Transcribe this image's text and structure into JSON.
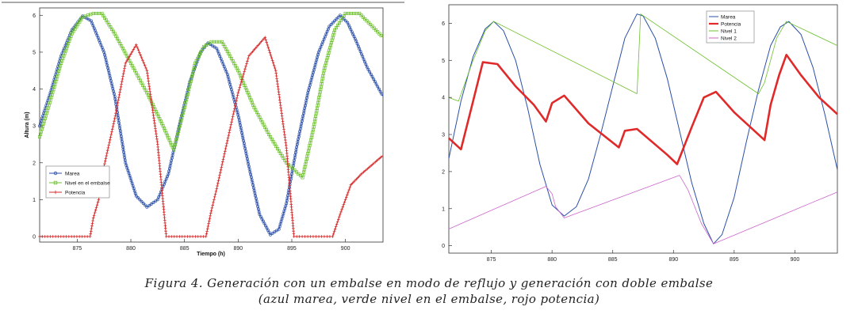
{
  "caption": {
    "line1": "Figura 4. Generación con un embalse en modo de reflujo y generación con doble embalse",
    "line2": "(azul marea, verde nivel en el embalse, rojo potencia)"
  },
  "chart_data": [
    {
      "type": "line",
      "title": "",
      "xlabel": "Tiempo (h)",
      "ylabel": "Altura (m)",
      "xlim": [
        871.5,
        903.5
      ],
      "ylim": [
        -0.15,
        6.2
      ],
      "xticks": [
        875,
        880,
        885,
        890,
        895,
        900
      ],
      "yticks": [
        0,
        1,
        2,
        3,
        4,
        5,
        6
      ],
      "grid": false,
      "legend": "lower-left",
      "series": [
        {
          "name": "Marea",
          "color": "#2b4fa8",
          "marker": "circle",
          "points": [
            [
              871.5,
              3.0
            ],
            [
              872.5,
              3.9
            ],
            [
              873.5,
              4.9
            ],
            [
              874.5,
              5.6
            ],
            [
              875.5,
              5.98
            ],
            [
              876.3,
              5.85
            ],
            [
              877.5,
              5.0
            ],
            [
              878.5,
              3.8
            ],
            [
              879.5,
              2.0
            ],
            [
              880.5,
              1.1
            ],
            [
              881.5,
              0.8
            ],
            [
              882.5,
              1.0
            ],
            [
              883.5,
              1.7
            ],
            [
              884.5,
              3.0
            ],
            [
              885.5,
              4.2
            ],
            [
              886.5,
              5.0
            ],
            [
              887.2,
              5.25
            ],
            [
              888.0,
              5.1
            ],
            [
              889.0,
              4.4
            ],
            [
              890.0,
              3.3
            ],
            [
              891.0,
              1.9
            ],
            [
              892.0,
              0.6
            ],
            [
              893.0,
              0.05
            ],
            [
              893.8,
              0.2
            ],
            [
              894.5,
              0.9
            ],
            [
              895.5,
              2.5
            ],
            [
              896.5,
              3.9
            ],
            [
              897.5,
              5.0
            ],
            [
              898.5,
              5.7
            ],
            [
              899.5,
              6.0
            ],
            [
              900.2,
              5.8
            ],
            [
              901.0,
              5.3
            ],
            [
              902.0,
              4.6
            ],
            [
              903.5,
              3.8
            ]
          ]
        },
        {
          "name": "Nivel en el embalse",
          "color": "#6cc02c",
          "marker": "square",
          "points": [
            [
              871.5,
              2.7
            ],
            [
              872.5,
              3.7
            ],
            [
              873.5,
              4.7
            ],
            [
              874.5,
              5.5
            ],
            [
              875.5,
              5.95
            ],
            [
              876.5,
              6.05
            ],
            [
              877.3,
              6.05
            ],
            [
              878.5,
              5.5
            ],
            [
              880.0,
              4.7
            ],
            [
              881.5,
              3.9
            ],
            [
              883.0,
              3.0
            ],
            [
              884.0,
              2.35
            ],
            [
              885.0,
              3.5
            ],
            [
              886.0,
              4.7
            ],
            [
              886.8,
              5.15
            ],
            [
              887.5,
              5.28
            ],
            [
              888.5,
              5.28
            ],
            [
              890.0,
              4.5
            ],
            [
              891.5,
              3.5
            ],
            [
              893.0,
              2.7
            ],
            [
              894.5,
              2.0
            ],
            [
              896.0,
              1.6
            ],
            [
              897.0,
              2.9
            ],
            [
              898.0,
              4.5
            ],
            [
              899.0,
              5.6
            ],
            [
              900.0,
              6.05
            ],
            [
              901.3,
              6.05
            ],
            [
              902.5,
              5.7
            ],
            [
              903.5,
              5.4
            ]
          ]
        },
        {
          "name": "Potencia",
          "color": "#d42a2a",
          "marker": "plus",
          "points": [
            [
              871.5,
              0
            ],
            [
              876.2,
              0
            ],
            [
              876.5,
              0.5
            ],
            [
              877.0,
              1.0
            ],
            [
              877.5,
              1.9
            ],
            [
              878.5,
              3.2
            ],
            [
              879.5,
              4.7
            ],
            [
              880.5,
              5.2
            ],
            [
              881.5,
              4.5
            ],
            [
              882.5,
              2.5
            ],
            [
              883.3,
              0
            ],
            [
              887.0,
              0
            ],
            [
              887.5,
              0.7
            ],
            [
              888.0,
              1.3
            ],
            [
              889.0,
              2.6
            ],
            [
              890.0,
              3.9
            ],
            [
              891.0,
              4.9
            ],
            [
              892.5,
              5.4
            ],
            [
              893.5,
              4.5
            ],
            [
              894.5,
              2.4
            ],
            [
              895.2,
              0
            ],
            [
              898.8,
              0
            ],
            [
              899.5,
              0.6
            ],
            [
              900.5,
              1.4
            ],
            [
              901.5,
              1.7
            ],
            [
              903.5,
              2.2
            ]
          ]
        }
      ]
    },
    {
      "type": "line",
      "title": "",
      "xlabel": "",
      "ylabel": "",
      "xlim": [
        871.5,
        903.5
      ],
      "ylim": [
        -0.2,
        6.5
      ],
      "xticks": [
        875,
        880,
        885,
        890,
        895,
        900
      ],
      "yticks": [
        0,
        1,
        2,
        3,
        4,
        5,
        6
      ],
      "grid": false,
      "legend": "top-center",
      "series": [
        {
          "name": "Marea",
          "color": "#2b4fa8",
          "points": [
            [
              871.5,
              2.35
            ],
            [
              872.5,
              3.9
            ],
            [
              873.5,
              5.1
            ],
            [
              874.5,
              5.85
            ],
            [
              875.2,
              6.05
            ],
            [
              876.0,
              5.8
            ],
            [
              877.0,
              5.0
            ],
            [
              878.0,
              3.7
            ],
            [
              879.0,
              2.2
            ],
            [
              880.0,
              1.1
            ],
            [
              881.0,
              0.8
            ],
            [
              882.0,
              1.05
            ],
            [
              883.0,
              1.8
            ],
            [
              884.0,
              3.0
            ],
            [
              885.0,
              4.3
            ],
            [
              886.0,
              5.6
            ],
            [
              887.0,
              6.25
            ],
            [
              887.5,
              6.2
            ],
            [
              888.5,
              5.6
            ],
            [
              889.5,
              4.5
            ],
            [
              890.5,
              3.1
            ],
            [
              891.5,
              1.7
            ],
            [
              892.5,
              0.6
            ],
            [
              893.3,
              0.05
            ],
            [
              894.0,
              0.3
            ],
            [
              895.0,
              1.3
            ],
            [
              896.0,
              2.8
            ],
            [
              897.0,
              4.2
            ],
            [
              898.0,
              5.4
            ],
            [
              898.8,
              5.9
            ],
            [
              899.5,
              6.05
            ],
            [
              900.5,
              5.7
            ],
            [
              901.5,
              4.8
            ],
            [
              902.5,
              3.5
            ],
            [
              903.5,
              2.05
            ]
          ]
        },
        {
          "name": "Potencia",
          "color": "#e02a2a",
          "points": [
            [
              871.5,
              2.9
            ],
            [
              872.5,
              2.6
            ],
            [
              873.5,
              3.9
            ],
            [
              874.3,
              4.95
            ],
            [
              875.5,
              4.9
            ],
            [
              877.0,
              4.3
            ],
            [
              878.5,
              3.8
            ],
            [
              879.5,
              3.35
            ],
            [
              880.0,
              3.85
            ],
            [
              881.0,
              4.05
            ],
            [
              883.0,
              3.3
            ],
            [
              885.5,
              2.65
            ],
            [
              886.0,
              3.1
            ],
            [
              887.0,
              3.15
            ],
            [
              889.5,
              2.45
            ],
            [
              890.3,
              2.2
            ],
            [
              891.5,
              3.2
            ],
            [
              892.5,
              4.0
            ],
            [
              893.5,
              4.15
            ],
            [
              895.0,
              3.6
            ],
            [
              897.5,
              2.85
            ],
            [
              898.0,
              3.8
            ],
            [
              898.7,
              4.6
            ],
            [
              899.3,
              5.15
            ],
            [
              900.5,
              4.6
            ],
            [
              902.0,
              4.0
            ],
            [
              903.5,
              3.55
            ]
          ]
        },
        {
          "name": "Nivel 1",
          "color": "#6cc02c",
          "points": [
            [
              871.5,
              4.0
            ],
            [
              872.3,
              3.9
            ],
            [
              873.5,
              5.0
            ],
            [
              874.5,
              5.8
            ],
            [
              875.2,
              6.05
            ],
            [
              887.0,
              4.1
            ],
            [
              887.3,
              6.25
            ],
            [
              897.0,
              4.1
            ],
            [
              897.5,
              4.4
            ],
            [
              898.5,
              5.6
            ],
            [
              899.3,
              6.05
            ],
            [
              903.5,
              5.4
            ]
          ]
        },
        {
          "name": "Nivel 2",
          "color": "#cc66cc",
          "points": [
            [
              871.5,
              0.45
            ],
            [
              879.5,
              1.6
            ],
            [
              880.0,
              1.4
            ],
            [
              880.3,
              1.05
            ],
            [
              881.0,
              0.75
            ],
            [
              890.5,
              1.9
            ],
            [
              891.2,
              1.5
            ],
            [
              892.3,
              0.6
            ],
            [
              893.3,
              0.05
            ],
            [
              903.5,
              1.45
            ]
          ]
        }
      ]
    }
  ]
}
